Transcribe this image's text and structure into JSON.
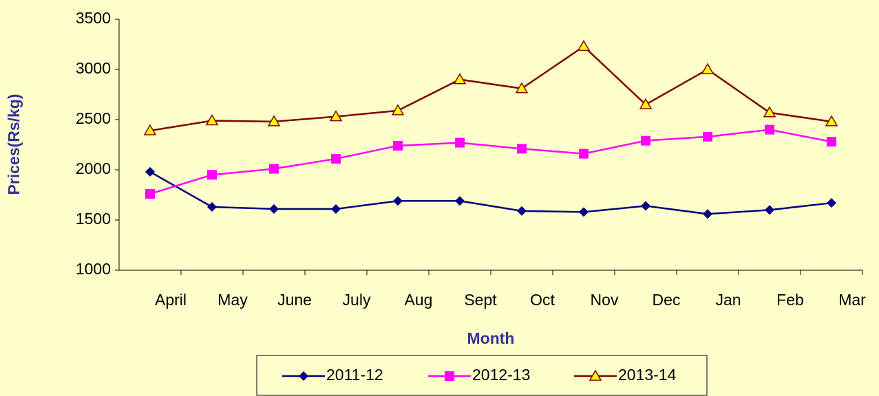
{
  "chart_data": {
    "type": "line",
    "x_label": "Month",
    "y_label": "Prices(Rs/kg)",
    "categories": [
      "April",
      "May",
      "June",
      "July",
      "Aug",
      "Sept",
      "Oct",
      "Nov",
      "Dec",
      "Jan",
      "Feb",
      "Mar"
    ],
    "series": [
      {
        "name": "2011-12",
        "color": "#000080",
        "marker": "diamond",
        "values": [
          1980,
          1630,
          1610,
          1610,
          1690,
          1690,
          1590,
          1580,
          1640,
          1560,
          1600,
          1670
        ]
      },
      {
        "name": "2012-13",
        "color": "#FF00FF",
        "marker": "square",
        "values": [
          1760,
          1950,
          2010,
          2110,
          2240,
          2270,
          2210,
          2160,
          2290,
          2330,
          2400,
          2280
        ]
      },
      {
        "name": "2013-14",
        "color": "#800000",
        "marker": "triangle",
        "values": [
          2390,
          2490,
          2480,
          2530,
          2590,
          2900,
          2810,
          3230,
          2650,
          3000,
          2570,
          2480
        ]
      }
    ],
    "ylim": [
      1000,
      3500
    ],
    "yticks": [
      1000,
      1500,
      2000,
      2500,
      3000,
      3500
    ],
    "grid": false,
    "legend": "bottom"
  }
}
